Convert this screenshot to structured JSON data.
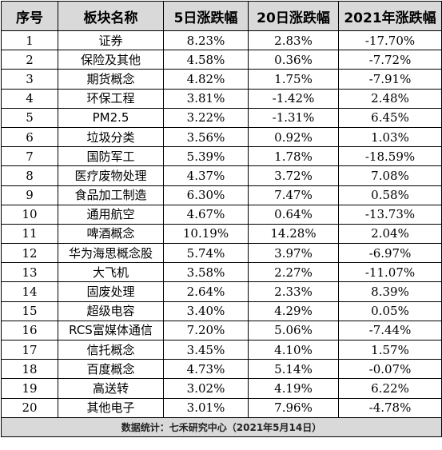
{
  "headers": [
    "序号",
    "板块名称",
    "5日涨跌幅",
    "20日涨跌幅",
    "2021年涨跌幅"
  ],
  "rows": [
    [
      "1",
      "证券",
      "8.23%",
      "2.83%",
      "-17.70%"
    ],
    [
      "2",
      "保险及其他",
      "4.58%",
      "0.36%",
      "-7.72%"
    ],
    [
      "3",
      "期货概念",
      "4.82%",
      "1.75%",
      "-7.91%"
    ],
    [
      "4",
      "环保工程",
      "3.81%",
      "-1.42%",
      "2.48%"
    ],
    [
      "5",
      "PM2.5",
      "3.22%",
      "-1.31%",
      "6.45%"
    ],
    [
      "6",
      "垃圾分类",
      "3.56%",
      "0.92%",
      "1.03%"
    ],
    [
      "7",
      "国防军工",
      "5.39%",
      "1.78%",
      "-18.59%"
    ],
    [
      "8",
      "医疗废物处理",
      "4.37%",
      "3.72%",
      "7.08%"
    ],
    [
      "9",
      "食品加工制造",
      "6.30%",
      "7.47%",
      "0.58%"
    ],
    [
      "10",
      "通用航空",
      "4.67%",
      "0.64%",
      "-13.73%"
    ],
    [
      "11",
      "啤酒概念",
      "10.19%",
      "14.28%",
      "2.04%"
    ],
    [
      "12",
      "华为海思概念股",
      "5.74%",
      "3.97%",
      "-6.97%"
    ],
    [
      "13",
      "大飞机",
      "3.58%",
      "2.27%",
      "-11.07%"
    ],
    [
      "14",
      "固废处理",
      "2.64%",
      "2.33%",
      "8.39%"
    ],
    [
      "15",
      "超级电容",
      "3.40%",
      "4.29%",
      "0.05%"
    ],
    [
      "16",
      "RCS富媒体通信",
      "7.20%",
      "5.06%",
      "-7.44%"
    ],
    [
      "17",
      "信托概念",
      "3.45%",
      "4.10%",
      "1.57%"
    ],
    [
      "18",
      "百度概念",
      "4.73%",
      "5.14%",
      "-0.07%"
    ],
    [
      "19",
      "高送转",
      "3.02%",
      "4.19%",
      "6.22%"
    ],
    [
      "20",
      "其他电子",
      "3.01%",
      "7.96%",
      "-4.78%"
    ]
  ],
  "footer": "数据统计：七禾研究中心（2021年5月14日）"
}
